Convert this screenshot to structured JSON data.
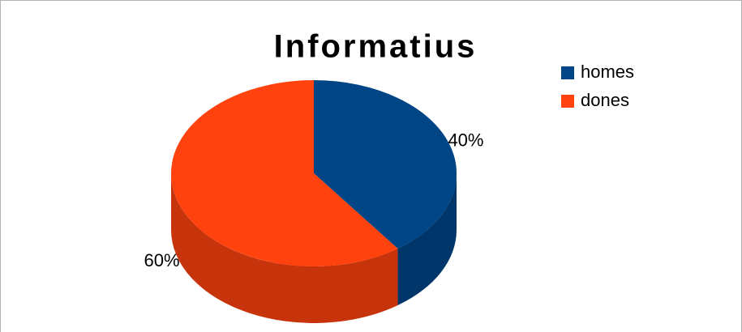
{
  "chart_data": {
    "type": "pie",
    "title": "Informatius",
    "categories": [
      "homes",
      "dones"
    ],
    "values": [
      40,
      60
    ],
    "value_labels": [
      "40%",
      "60%"
    ],
    "colors": [
      "#004586",
      "#ff420e"
    ],
    "legend": "right"
  }
}
